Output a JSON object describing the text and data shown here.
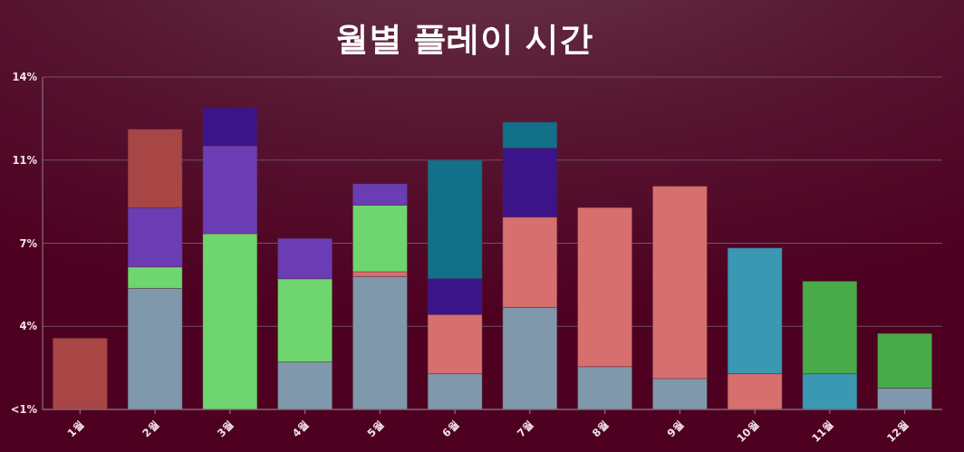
{
  "chart_data": {
    "type": "bar",
    "title": "월별 플레이 시간",
    "categories": [
      "1월",
      "2월",
      "3월",
      "4월",
      "5월",
      "6월",
      "7월",
      "8월",
      "9월",
      "10월",
      "11월",
      "12월"
    ],
    "stacked": true,
    "series": [
      {
        "color": "#7f98ab",
        "values": [
          null,
          5.1,
          null,
          2.0,
          5.6,
          1.5,
          4.3,
          1.8,
          1.3,
          null,
          null,
          0.9
        ]
      },
      {
        "color": "#d76f6e",
        "values": [
          null,
          null,
          null,
          null,
          0.2,
          2.5,
          3.8,
          6.7,
          8.1,
          1.5,
          null,
          null
        ]
      },
      {
        "color": "#6fd66f",
        "values": [
          null,
          0.9,
          7.4,
          3.5,
          2.8,
          null,
          null,
          null,
          null,
          null,
          null,
          null
        ]
      },
      {
        "color": "#6a3db5",
        "values": [
          null,
          2.5,
          3.7,
          1.7,
          0.9,
          null,
          null,
          null,
          null,
          null,
          null,
          null
        ]
      },
      {
        "color": "#3c148a",
        "values": [
          null,
          null,
          1.6,
          null,
          null,
          1.5,
          2.9,
          null,
          null,
          null,
          null,
          null
        ]
      },
      {
        "color": "#127088",
        "values": [
          null,
          null,
          null,
          null,
          null,
          5.0,
          1.1,
          null,
          null,
          null,
          null,
          null
        ]
      },
      {
        "color": "#a84545",
        "values": [
          3.0,
          3.3,
          null,
          null,
          null,
          null,
          null,
          null,
          null,
          null,
          null,
          null
        ]
      },
      {
        "color": "#3a98b2",
        "values": [
          null,
          null,
          null,
          null,
          null,
          null,
          null,
          null,
          null,
          5.3,
          1.5,
          null
        ]
      },
      {
        "color": "#48aa48",
        "values": [
          null,
          null,
          null,
          null,
          null,
          null,
          null,
          null,
          null,
          null,
          3.9,
          2.3
        ]
      }
    ],
    "ylim": [
      0,
      14
    ],
    "yticks": [
      {
        "value": 0,
        "label": "<1%"
      },
      {
        "value": 3.5,
        "label": "4%"
      },
      {
        "value": 7,
        "label": "7%"
      },
      {
        "value": 10.5,
        "label": "11%"
      },
      {
        "value": 14,
        "label": "14%"
      }
    ],
    "grid": "y"
  }
}
